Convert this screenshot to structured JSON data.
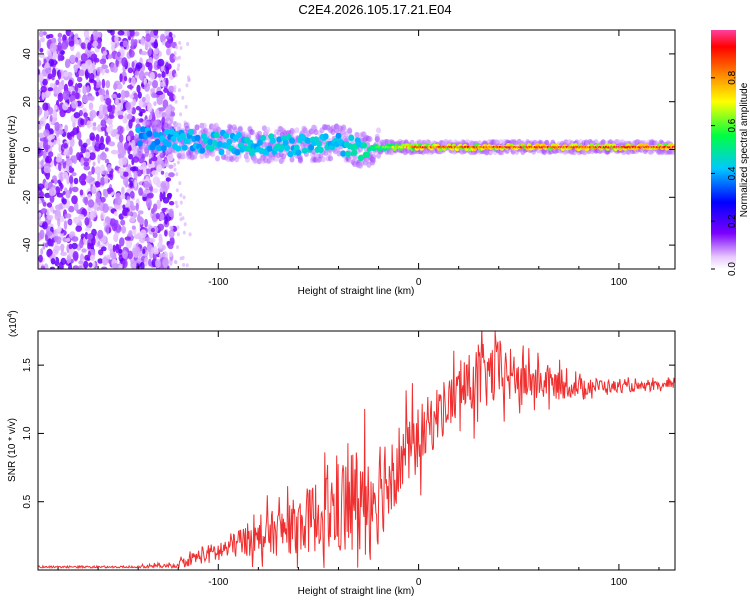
{
  "title": "C2E4.2026.105.17.21.E04",
  "chart_data": [
    {
      "type": "heatmap",
      "name": "spectrogram",
      "xlabel": "Height of straight line (km)",
      "ylabel": "Frequency (Hz)",
      "xlim": [
        -190,
        128
      ],
      "ylim": [
        -50,
        50
      ],
      "xticks": [
        -100,
        0,
        100
      ],
      "yticks": [
        -40,
        -20,
        0,
        20,
        40
      ],
      "colorbar": {
        "label": "Normalized spectral amplitude",
        "range": [
          0.0,
          1.0
        ],
        "ticks": [
          0.0,
          0.2,
          0.4,
          0.6,
          0.8
        ],
        "colors": [
          "#ffffff",
          "#7a00ff",
          "#0000ff",
          "#00c8ff",
          "#00ff40",
          "#ffff00",
          "#ff8000",
          "#ff0000",
          "#ff40a0"
        ]
      },
      "noise_region_x": [
        -190,
        -122
      ],
      "signal_trace": {
        "x": [
          -140,
          -120,
          -100,
          -80,
          -60,
          -40,
          -30,
          -20,
          0,
          20,
          50,
          80,
          100,
          128
        ],
        "frequency": [
          5,
          4,
          3,
          2,
          2,
          3,
          0,
          1,
          1,
          1,
          1,
          1,
          1,
          1
        ],
        "amplitude": [
          0.35,
          0.4,
          0.45,
          0.45,
          0.45,
          0.45,
          0.5,
          0.6,
          0.9,
          0.9,
          0.95,
          0.95,
          0.95,
          0.95
        ]
      }
    },
    {
      "type": "line",
      "name": "snr",
      "xlabel": "Height of straight line (km)",
      "ylabel": "SNR (10 * v/v)",
      "yscale_label": "(x10",
      "yscale_exp": "4",
      "xlim": [
        -190,
        128
      ],
      "ylim": [
        0,
        17500
      ],
      "xticks": [
        -100,
        0,
        100
      ],
      "yticks": [
        5000,
        10000,
        15000
      ],
      "ytick_labels": [
        "0.5",
        "1.0",
        "1.5"
      ],
      "color": "#f03030",
      "series": [
        {
          "name": "SNR envelope",
          "x": [
            -190,
            -150,
            -122,
            -110,
            -100,
            -90,
            -80,
            -70,
            -60,
            -50,
            -40,
            -30,
            -20,
            -10,
            0,
            10,
            20,
            30,
            40,
            50,
            60,
            70,
            80,
            90,
            100,
            110,
            128
          ],
          "y": [
            0,
            0,
            300,
            1000,
            1300,
            2000,
            2500,
            2800,
            3300,
            4000,
            4500,
            5000,
            6000,
            8000,
            9500,
            11500,
            13000,
            14000,
            14500,
            14000,
            13800,
            13500,
            13400,
            13500,
            13400,
            13400,
            13500
          ],
          "noise": [
            200,
            200,
            300,
            800,
            1200,
            1500,
            2000,
            2500,
            3000,
            4000,
            5000,
            6500,
            6000,
            4000,
            3500,
            3000,
            3000,
            3500,
            3500,
            2500,
            2000,
            1500,
            1000,
            800,
            600,
            500,
            500
          ]
        }
      ]
    }
  ]
}
